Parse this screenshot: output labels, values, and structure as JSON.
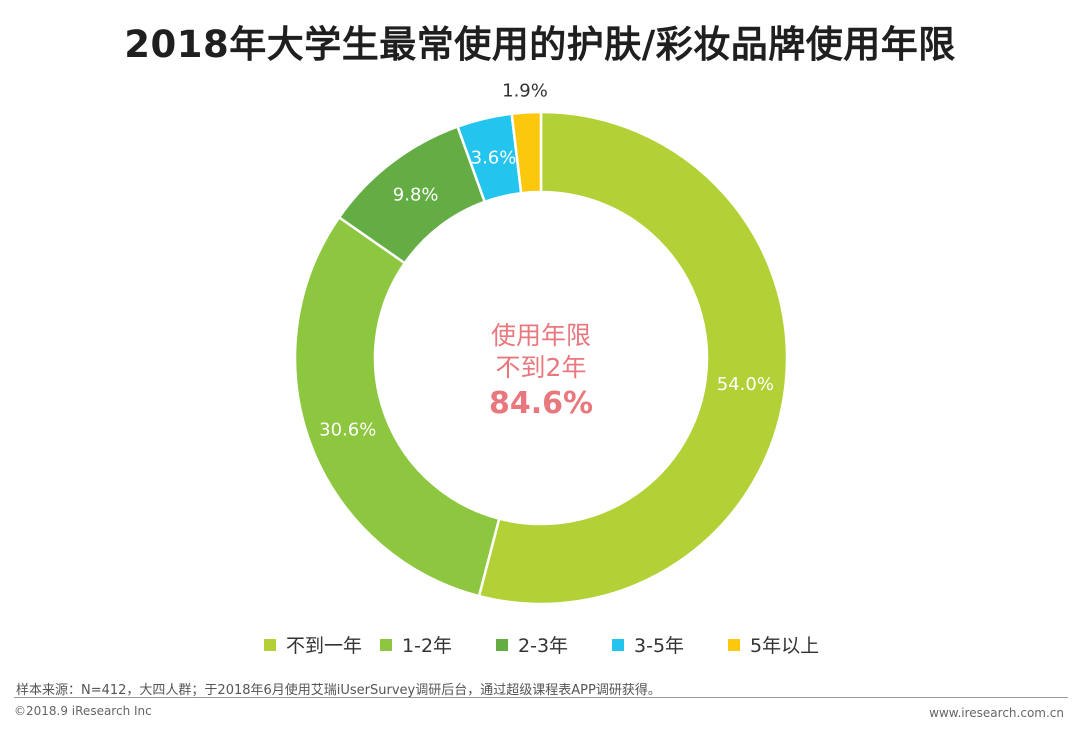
{
  "page": {
    "title": "2018年大学生最常使用的护肤/彩妆品牌使用年限",
    "source_note": "样本来源：N=412，大四人群；于2018年6月使用艾瑞iUserSurvey调研后台，通过超级课程表APP调研获得。",
    "copyright": "©2018.9 iResearch Inc",
    "website": "www.iresearch.com.cn"
  },
  "chart_data": {
    "type": "pie",
    "variant": "donut",
    "title": "2018年大学生最常使用的护肤/彩妆品牌使用年限",
    "categories": [
      "不到一年",
      "1-2年",
      "2-3年",
      "3-5年",
      "5年以上"
    ],
    "values": [
      54.0,
      30.6,
      9.8,
      3.6,
      1.9
    ],
    "value_labels": [
      "54.0%",
      "30.6%",
      "9.8%",
      "3.6%",
      "1.9%"
    ],
    "colors": [
      "#b1d136",
      "#8dc63f",
      "#63ad44",
      "#23c4ee",
      "#fcc80e"
    ],
    "unit": "%",
    "legend_position": "bottom",
    "center_annotation": {
      "line1": "使用年限",
      "line2": "不到2年",
      "value": "84.6%",
      "color": "#e8787e"
    }
  }
}
